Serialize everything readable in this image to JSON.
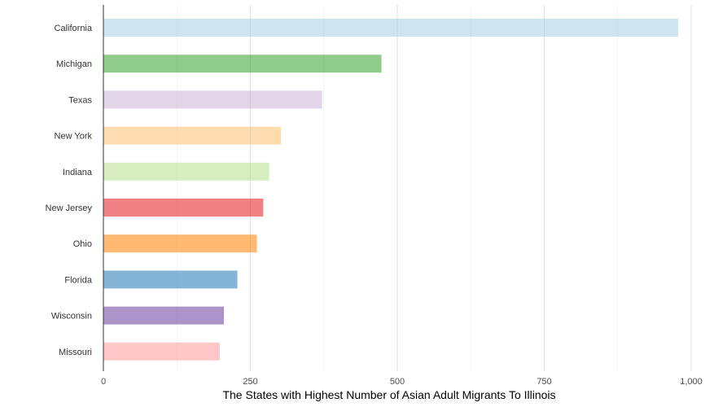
{
  "chart_data": {
    "type": "bar",
    "orientation": "horizontal",
    "categories": [
      "California",
      "Michigan",
      "Texas",
      "New York",
      "Indiana",
      "New Jersey",
      "Ohio",
      "Florida",
      "Wisconsin",
      "Missouri"
    ],
    "values": [
      978,
      473,
      372,
      302,
      282,
      272,
      261,
      228,
      205,
      198
    ],
    "colors": [
      "#A6CEE3",
      "#33A02C",
      "#CAB2D6",
      "#FDBF6F",
      "#B2DF8A",
      "#E31A1C",
      "#FF7F00",
      "#1F78B4",
      "#6A3D9A",
      "#FB9A99"
    ],
    "bar_opacity": 0.55,
    "title": "",
    "xlabel": "The States with Highest Number of Asian Adult Migrants To Illinois",
    "ylabel": "",
    "xlim": [
      0,
      1000
    ],
    "x_ticks": [
      0,
      250,
      500,
      750,
      1000
    ],
    "x_tick_labels": [
      "0",
      "250",
      "500",
      "750",
      "1,000"
    ],
    "grid": "vertical",
    "legend": "none"
  }
}
